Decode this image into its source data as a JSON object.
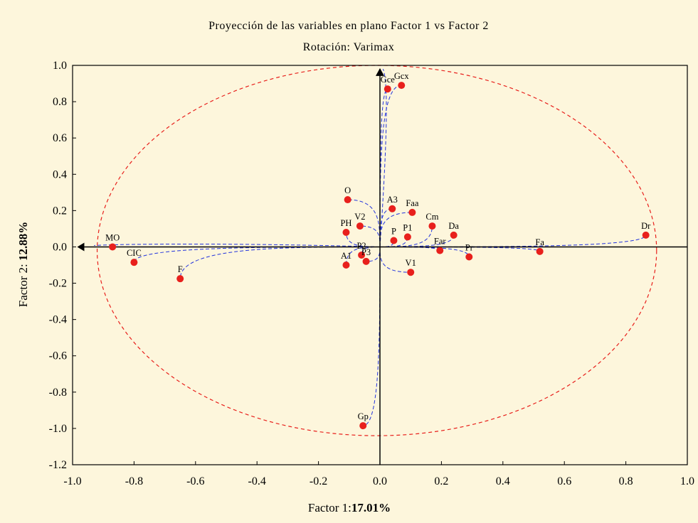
{
  "chart_data": {
    "type": "scatter",
    "title": "Proyección de las variables en plano Factor 1 vs Factor 2",
    "subtitle": "Rotación: Varimax",
    "xlabel": {
      "prefix": "Factor 1:",
      "value": "17.01%"
    },
    "ylabel": {
      "prefix": "Factor 2: ",
      "value": "12.88%"
    },
    "xlim": [
      -1.0,
      1.0
    ],
    "ylim": [
      -1.2,
      1.0
    ],
    "x_ticks": [
      "-1.0",
      "-0.8",
      "-0.6",
      "-0.4",
      "-0.2",
      "0.0",
      "0.2",
      "0.4",
      "0.6",
      "0.8",
      "1.0"
    ],
    "y_ticks": [
      "1.0",
      "0.8",
      "0.6",
      "0.4",
      "0.2",
      "0.0",
      "-0.2",
      "-0.4",
      "-0.6",
      "-0.8",
      "-1.0",
      "-1.2"
    ],
    "grid": false,
    "ellipse": {
      "color": "#e8201c",
      "style": "dashed"
    },
    "rotation_paths_color": "#2233dd",
    "point_color": "#e8201c",
    "points": [
      {
        "label": "Gce",
        "x": 0.025,
        "y": 0.87
      },
      {
        "label": "Gcx",
        "x": 0.07,
        "y": 0.89
      },
      {
        "label": "O",
        "x": -0.105,
        "y": 0.26
      },
      {
        "label": "A3",
        "x": 0.04,
        "y": 0.21
      },
      {
        "label": "Faa",
        "x": 0.105,
        "y": 0.19
      },
      {
        "label": "V2",
        "x": -0.065,
        "y": 0.115
      },
      {
        "label": "PH",
        "x": -0.11,
        "y": 0.08
      },
      {
        "label": "Cm",
        "x": 0.17,
        "y": 0.115
      },
      {
        "label": "P1",
        "x": 0.09,
        "y": 0.055
      },
      {
        "label": "P",
        "x": 0.045,
        "y": 0.035
      },
      {
        "label": "Da",
        "x": 0.24,
        "y": 0.065
      },
      {
        "label": "Dr",
        "x": 0.865,
        "y": 0.065
      },
      {
        "label": "Fa",
        "x": 0.52,
        "y": -0.025
      },
      {
        "label": "Far",
        "x": 0.195,
        "y": -0.02
      },
      {
        "label": "Pr",
        "x": 0.29,
        "y": -0.055
      },
      {
        "label": "MO",
        "x": -0.87,
        "y": 0.0
      },
      {
        "label": "CIC",
        "x": -0.8,
        "y": -0.085
      },
      {
        "label": "F",
        "x": -0.65,
        "y": -0.175
      },
      {
        "label": "P2",
        "x": -0.06,
        "y": -0.045
      },
      {
        "label": "P3",
        "x": -0.045,
        "y": -0.08
      },
      {
        "label": "A1",
        "x": -0.11,
        "y": -0.1
      },
      {
        "label": "V1",
        "x": 0.1,
        "y": -0.14
      },
      {
        "label": "Gp",
        "x": -0.055,
        "y": -0.985
      }
    ]
  }
}
